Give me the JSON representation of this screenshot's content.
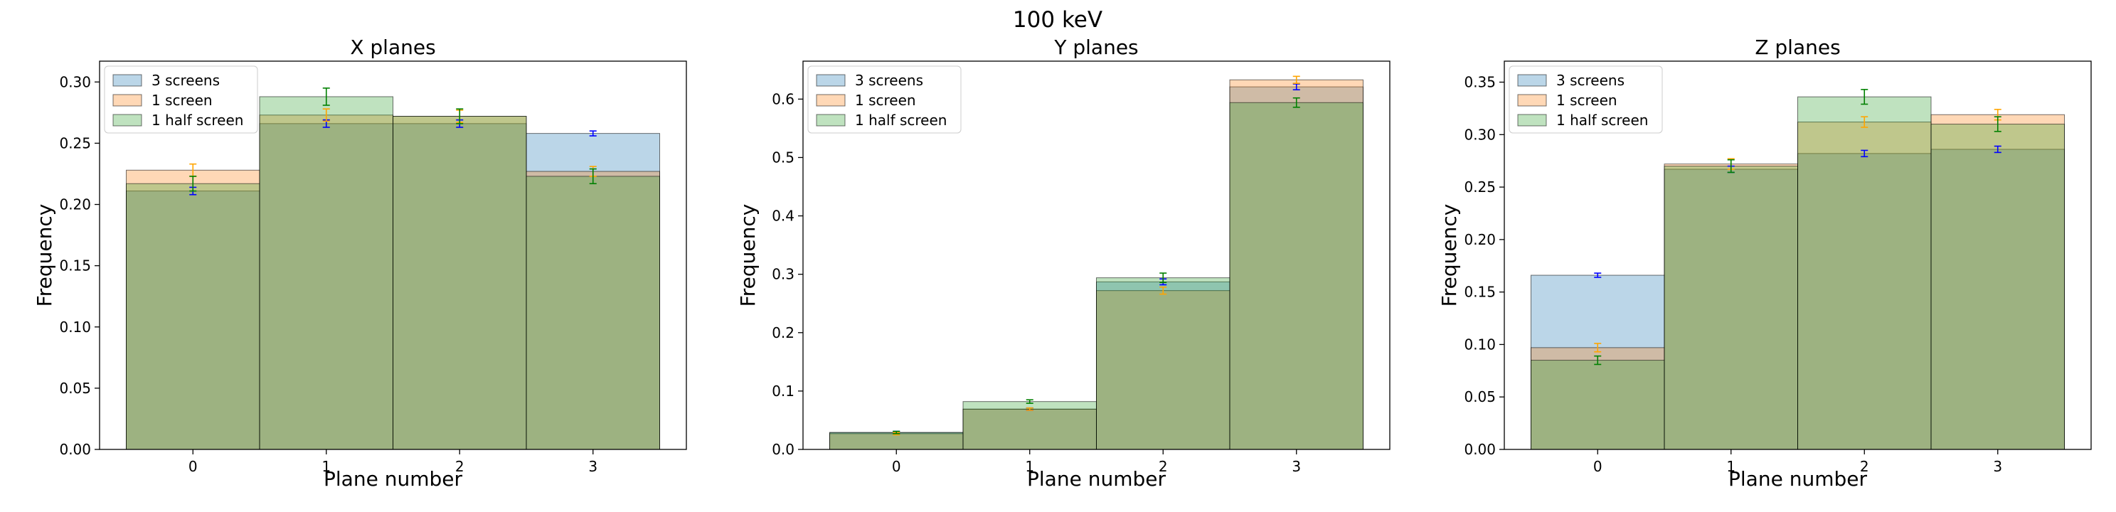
{
  "figure_title": "100 keV",
  "colors": {
    "series": [
      "#1f77b4",
      "#ff7f0e",
      "#2ca02c"
    ],
    "errorbars": [
      "#0000ff",
      "#ffa500",
      "#008000"
    ],
    "bar_alpha": 0.3,
    "bar_edge": "#000000",
    "axis": "#000000"
  },
  "chart_data": [
    {
      "type": "bar",
      "title": "X planes",
      "xlabel": "Plane number",
      "ylabel": "Frequency",
      "categories": [
        "0",
        "1",
        "2",
        "3"
      ],
      "ylim": [
        0,
        0.317
      ],
      "yticks": [
        "0.00",
        "0.05",
        "0.10",
        "0.15",
        "0.20",
        "0.25",
        "0.30"
      ],
      "legend_position": "top-left",
      "series": [
        {
          "name": "3 screens",
          "values": [
            0.211,
            0.266,
            0.266,
            0.258
          ],
          "errors": [
            0.003,
            0.003,
            0.003,
            0.002
          ]
        },
        {
          "name": "1 screen",
          "values": [
            0.228,
            0.273,
            0.272,
            0.227
          ],
          "errors": [
            0.005,
            0.005,
            0.005,
            0.004
          ]
        },
        {
          "name": "1 half screen",
          "values": [
            0.217,
            0.288,
            0.272,
            0.223
          ],
          "errors": [
            0.006,
            0.007,
            0.006,
            0.006
          ]
        }
      ]
    },
    {
      "type": "bar",
      "title": "Y planes",
      "xlabel": "Plane number",
      "ylabel": "Frequency",
      "categories": [
        "0",
        "1",
        "2",
        "3"
      ],
      "ylim": [
        0,
        0.665
      ],
      "yticks": [
        "0.0",
        "0.1",
        "0.2",
        "0.3",
        "0.4",
        "0.5",
        "0.6"
      ],
      "legend_position": "top-left",
      "series": [
        {
          "name": "3 screens",
          "values": [
            0.029,
            0.069,
            0.287,
            0.621
          ],
          "errors": [
            0.002,
            0.002,
            0.005,
            0.005
          ]
        },
        {
          "name": "1 screen",
          "values": [
            0.027,
            0.069,
            0.272,
            0.633
          ],
          "errors": [
            0.002,
            0.002,
            0.006,
            0.006
          ]
        },
        {
          "name": "1 half screen",
          "values": [
            0.029,
            0.082,
            0.294,
            0.594
          ],
          "errors": [
            0.002,
            0.003,
            0.008,
            0.008
          ]
        }
      ]
    },
    {
      "type": "bar",
      "title": "Z planes",
      "xlabel": "Plane number",
      "ylabel": "Frequency",
      "categories": [
        "0",
        "1",
        "2",
        "3"
      ],
      "ylim": [
        0,
        0.37
      ],
      "yticks": [
        "0.00",
        "0.05",
        "0.10",
        "0.15",
        "0.20",
        "0.25",
        "0.30",
        "0.35"
      ],
      "legend_position": "top-left",
      "series": [
        {
          "name": "3 screens",
          "values": [
            0.166,
            0.267,
            0.282,
            0.286
          ],
          "errors": [
            0.002,
            0.003,
            0.003,
            0.003
          ]
        },
        {
          "name": "1 screen",
          "values": [
            0.097,
            0.272,
            0.312,
            0.319
          ],
          "errors": [
            0.004,
            0.005,
            0.005,
            0.005
          ]
        },
        {
          "name": "1 half screen",
          "values": [
            0.085,
            0.27,
            0.336,
            0.31
          ],
          "errors": [
            0.004,
            0.006,
            0.007,
            0.007
          ]
        }
      ]
    }
  ]
}
